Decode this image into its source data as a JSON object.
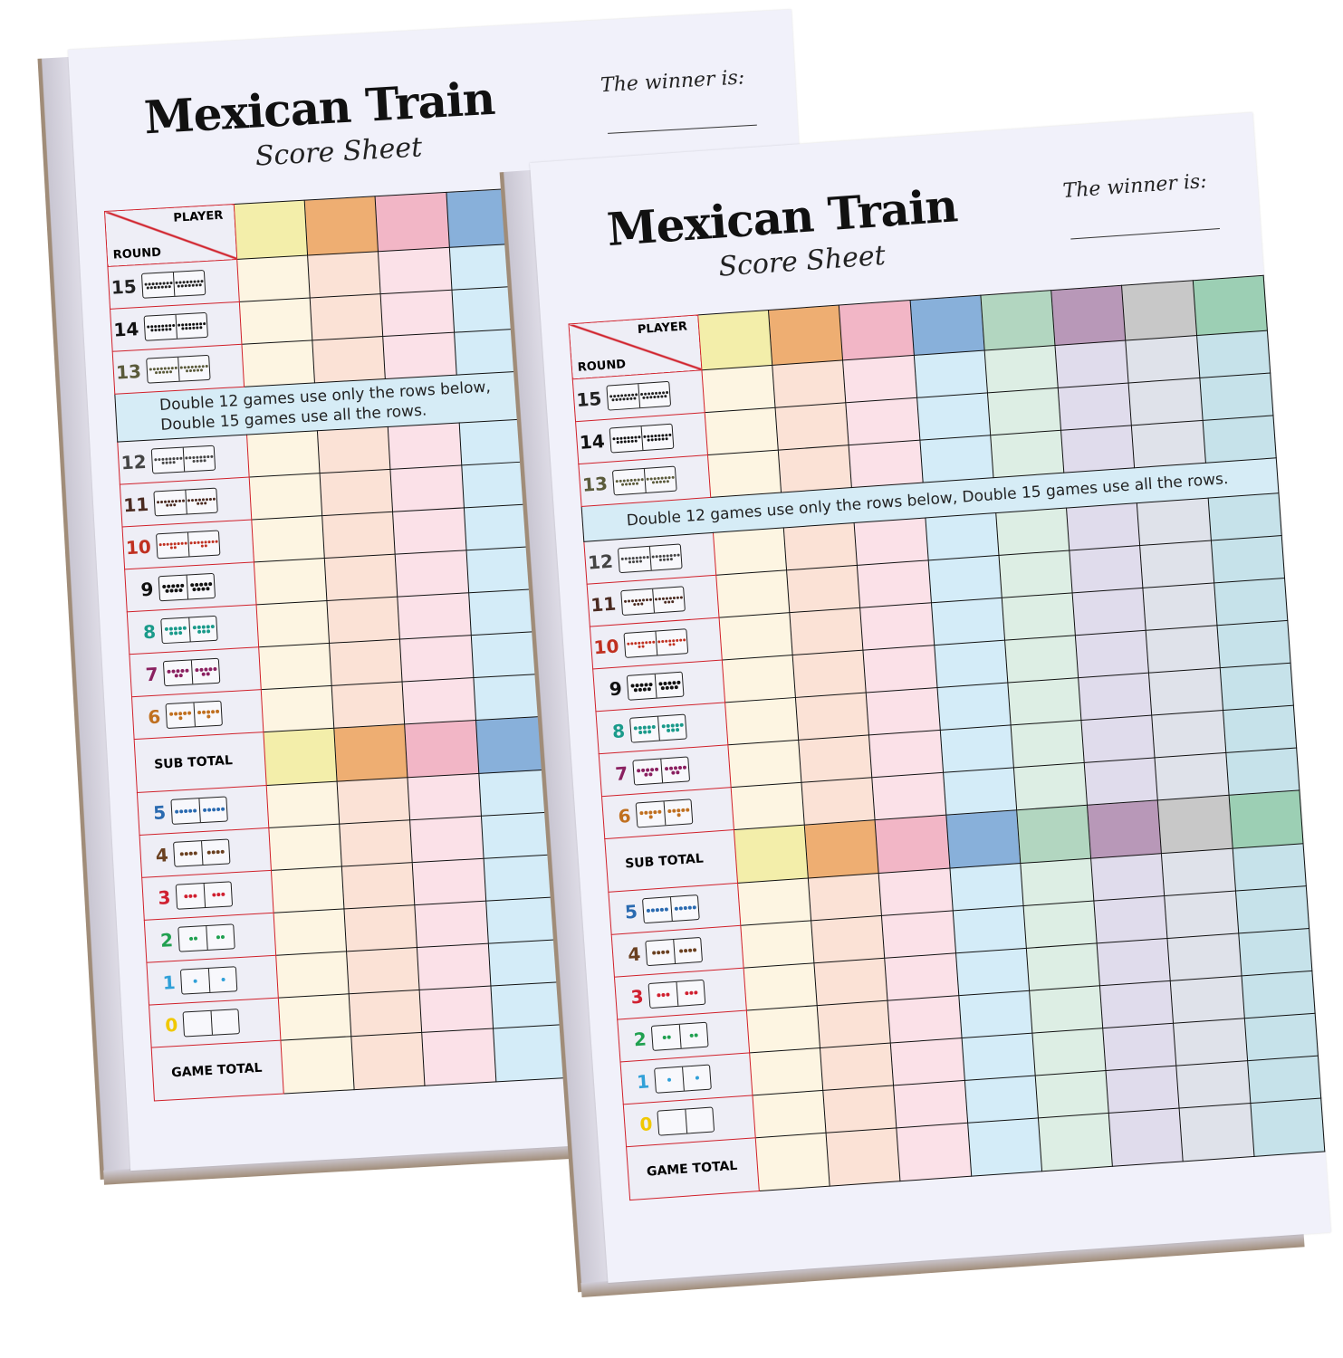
{
  "sheet": {
    "title": "Mexican Train",
    "subtitle": "Score Sheet",
    "winner_label": "The winner is:",
    "player_header": "PLAYER",
    "round_header": "ROUND",
    "banner": "Double 12 games use only the rows below, Double 15 games use all the rows.",
    "sub_total": "SUB TOTAL",
    "game_total": "GAME TOTAL"
  },
  "player_colors": [
    "#f3eeaa",
    "#eeae72",
    "#f2b6c6",
    "#88b0da",
    "#b2d6c0",
    "#b898b8",
    "#c8c8c8",
    "#9ccfb4"
  ],
  "player_light_colors": [
    "#fdf5e2",
    "#fbe2d6",
    "#fbe1e8",
    "#d4ecf8",
    "#ddeee4",
    "#e0dcec",
    "#dfe2ea",
    "#c6e2ea"
  ],
  "rounds_top": [
    {
      "n": "15",
      "color": "#222222"
    },
    {
      "n": "14",
      "color": "#111111"
    },
    {
      "n": "13",
      "color": "#5a5a3a"
    }
  ],
  "rounds_mid": [
    {
      "n": "12",
      "color": "#444444"
    },
    {
      "n": "11",
      "color": "#4a2a20"
    },
    {
      "n": "10",
      "color": "#c03020"
    },
    {
      "n": "9",
      "color": "#111111"
    },
    {
      "n": "8",
      "color": "#1a9a8a"
    },
    {
      "n": "7",
      "color": "#8a2060"
    },
    {
      "n": "6",
      "color": "#c07020"
    }
  ],
  "rounds_low": [
    {
      "n": "5",
      "color": "#2a6ab0"
    },
    {
      "n": "4",
      "color": "#6a4020"
    },
    {
      "n": "3",
      "color": "#d02030"
    },
    {
      "n": "2",
      "color": "#20a050"
    },
    {
      "n": "1",
      "color": "#30a0d8"
    },
    {
      "n": "0",
      "color": "#f0c800"
    }
  ]
}
